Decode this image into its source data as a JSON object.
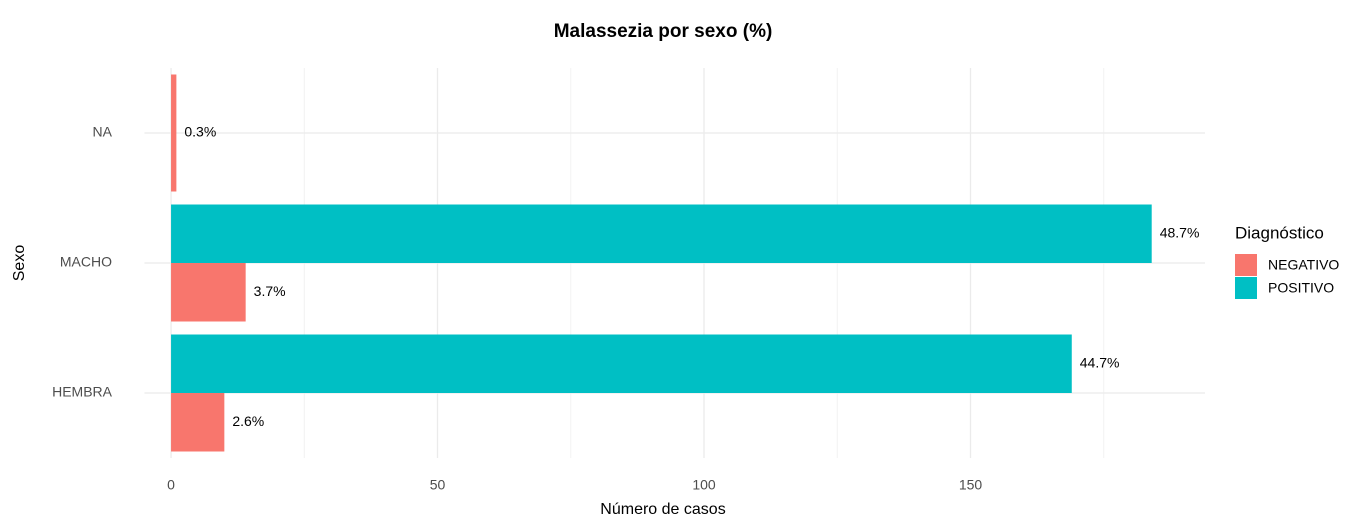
{
  "chart_data": {
    "type": "bar",
    "orientation": "horizontal",
    "title": "Malassezia por sexo (%)",
    "x_label": "Número de casos",
    "y_label": "Sexo",
    "categories": [
      "HEMBRA",
      "MACHO",
      "NA"
    ],
    "series": [
      {
        "name": "NEGATIVO",
        "color": "#F8766D",
        "values": [
          10,
          14,
          1
        ],
        "percent": [
          2.6,
          3.7,
          0.3
        ],
        "percent_labels": [
          "2.6%",
          "3.7%",
          "0.3%"
        ]
      },
      {
        "name": "POSITIVO",
        "color": "#00BFC4",
        "values": [
          169,
          184,
          null
        ],
        "percent": [
          44.7,
          48.7,
          null
        ],
        "percent_labels": [
          "44.7%",
          "48.7%",
          null
        ]
      }
    ],
    "legend_title": "Diagnóstico",
    "legend_position": "right",
    "xlim": [
      -5,
      194
    ],
    "xticks": [
      0,
      50,
      100,
      150
    ],
    "xminorticks": [
      25,
      75,
      125,
      175
    ],
    "grid": true
  }
}
